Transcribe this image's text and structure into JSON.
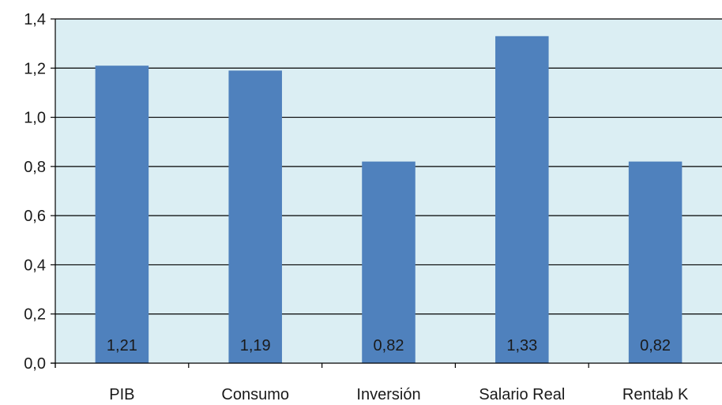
{
  "chart_data": {
    "type": "bar",
    "categories": [
      "PIB",
      "Consumo",
      "Inversión",
      "Salario Real",
      "Rentab K"
    ],
    "values": [
      1.21,
      1.19,
      0.82,
      1.33,
      0.82
    ],
    "data_labels": [
      "1,21",
      "1,19",
      "0,82",
      "1,33",
      "0,82"
    ],
    "y_ticks": [
      0.0,
      0.2,
      0.4,
      0.6,
      0.8,
      1.0,
      1.2,
      1.4
    ],
    "y_tick_labels": [
      "0,0",
      "0,2",
      "0,4",
      "0,6",
      "0,8",
      "1,0",
      "1,2",
      "1,4"
    ],
    "ylim": [
      0,
      1.4
    ],
    "grid": true,
    "legend": "none",
    "colors": {
      "bar": "#4f81bd",
      "plot_background": "#dbeef3",
      "gridline": "#000000"
    }
  }
}
